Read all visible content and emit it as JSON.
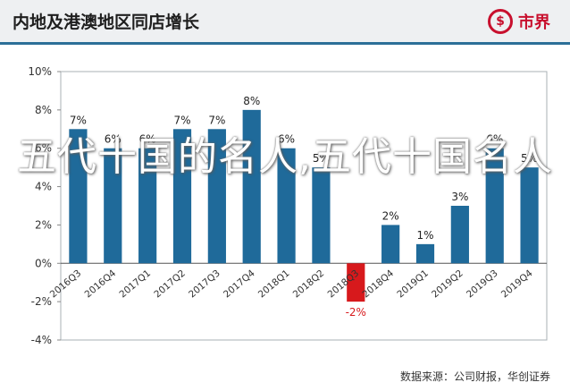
{
  "header": {
    "title": "内地及港澳地区同店增长",
    "brand": {
      "logo_glyph": "$",
      "name": "市界",
      "color": "#c8102e"
    }
  },
  "source_note": "数据来源：公司财报，华创证券",
  "overlay_text": "五代十国的名人,五代十国名人",
  "colors": {
    "bar_positive": "#1f6a9a",
    "bar_negative": "#d7191c",
    "header_bg": "#eef0f2",
    "header_rule": "#2b6f98"
  },
  "chart_data": {
    "type": "bar",
    "categories": [
      "2016Q3",
      "2016Q4",
      "2017Q1",
      "2017Q2",
      "2017Q3",
      "2017Q4",
      "2018Q1",
      "2018Q2",
      "2018Q3",
      "2018Q4",
      "2019Q1",
      "2019Q2",
      "2019Q3",
      "2019Q4"
    ],
    "values": [
      7,
      6,
      6,
      7,
      7,
      8,
      6,
      5,
      -2,
      2,
      1,
      3,
      6,
      5
    ],
    "data_labels": [
      "7%",
      "6%",
      "6%",
      "7%",
      "7%",
      "8%",
      "6%",
      "5%",
      "-2%",
      "2%",
      "1%",
      "3%",
      "6%",
      "5%"
    ],
    "ylim": [
      -4,
      10
    ],
    "yticks": [
      -4,
      -2,
      0,
      2,
      4,
      6,
      8,
      10
    ],
    "ytick_labels": [
      "-4%",
      "-2%",
      "0%",
      "2%",
      "4%",
      "6%",
      "8%",
      "10%"
    ],
    "title": "内地及港澳地区同店增长",
    "xlabel": "",
    "ylabel": "",
    "grid": false,
    "legend": "none"
  }
}
